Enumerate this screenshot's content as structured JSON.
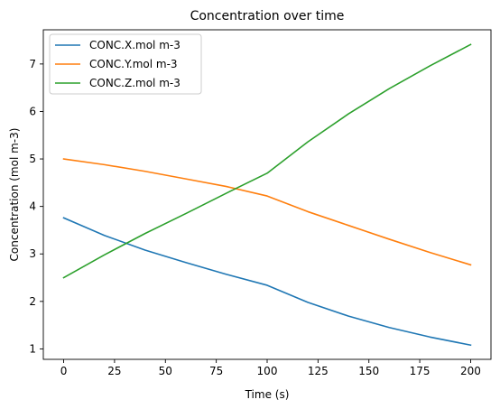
{
  "chart_data": {
    "type": "line",
    "title": "Concentration over time",
    "xlabel": "Time (s)",
    "ylabel": "Concentration (mol m-3)",
    "xlim": [
      -10,
      210
    ],
    "ylim": [
      0.78,
      7.72
    ],
    "xticks": [
      0,
      25,
      50,
      75,
      100,
      125,
      150,
      175,
      200
    ],
    "yticks": [
      1,
      2,
      3,
      4,
      5,
      6,
      7
    ],
    "grid": false,
    "legend_position": "upper-left",
    "series": [
      {
        "name": "CONC.X.mol m-3",
        "color": "#1f77b4",
        "x": [
          0,
          20,
          40,
          60,
          80,
          100,
          120,
          140,
          160,
          180,
          200
        ],
        "y": [
          3.76,
          3.39,
          3.08,
          2.82,
          2.57,
          2.34,
          1.98,
          1.69,
          1.45,
          1.25,
          1.08
        ]
      },
      {
        "name": "CONC.Y.mol m-3",
        "color": "#ff7f0e",
        "x": [
          0,
          20,
          40,
          60,
          80,
          100,
          120,
          140,
          160,
          180,
          200
        ],
        "y": [
          5.0,
          4.88,
          4.74,
          4.58,
          4.42,
          4.22,
          3.89,
          3.6,
          3.31,
          3.03,
          2.77
        ]
      },
      {
        "name": "CONC.Z.mol m-3",
        "color": "#2ca02c",
        "x": [
          0,
          20,
          40,
          60,
          80,
          100,
          120,
          140,
          160,
          180,
          200
        ],
        "y": [
          2.5,
          2.98,
          3.43,
          3.85,
          4.28,
          4.7,
          5.36,
          5.95,
          6.48,
          6.96,
          7.41
        ]
      }
    ]
  }
}
